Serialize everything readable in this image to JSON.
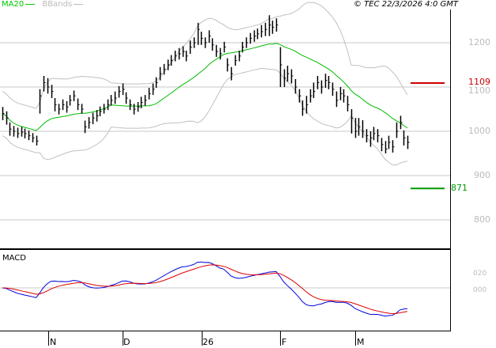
{
  "header": {
    "legend_ma": "MA20",
    "legend_bbands": "BBands",
    "copyright": "© TEC 22/3/2026 4:0 GMT"
  },
  "colors": {
    "ma": "#00bb00",
    "bands": "#c0c0c0",
    "bars": "#000000",
    "macd": "#0000dd",
    "signal": "#dd0000",
    "resistance": "#cc0000",
    "support": "#009900",
    "grid": "#c8c8c8"
  },
  "price_axis": {
    "labels": [
      "1200",
      "1100",
      "1000",
      "900",
      "800"
    ],
    "values": [
      1200,
      1100,
      1000,
      900,
      800
    ]
  },
  "levels": {
    "resistance": {
      "label": "1109",
      "value": 1109
    },
    "support": {
      "label": "871",
      "value": 871
    }
  },
  "macd_panel": {
    "title": "MACD",
    "labels": [
      "020",
      "000"
    ],
    "values": [
      20,
      0
    ]
  },
  "x_axis": {
    "labels": [
      "N",
      "D",
      "26",
      "F",
      "M"
    ]
  },
  "chart_data": {
    "type": "ohlc",
    "bars_hlc": [
      [
        1055,
        1025,
        1040
      ],
      [
        1045,
        1015,
        1030
      ],
      [
        1020,
        990,
        1005
      ],
      [
        1012,
        988,
        1000
      ],
      [
        1008,
        985,
        995
      ],
      [
        1010,
        988,
        998
      ],
      [
        1006,
        984,
        995
      ],
      [
        1002,
        980,
        990
      ],
      [
        996,
        975,
        985
      ],
      [
        990,
        968,
        978
      ],
      [
        1095,
        1040,
        1080
      ],
      [
        1125,
        1090,
        1110
      ],
      [
        1120,
        1085,
        1100
      ],
      [
        1105,
        1075,
        1090
      ],
      [
        1075,
        1045,
        1060
      ],
      [
        1062,
        1038,
        1050
      ],
      [
        1072,
        1048,
        1060
      ],
      [
        1068,
        1042,
        1055
      ],
      [
        1082,
        1058,
        1070
      ],
      [
        1092,
        1068,
        1080
      ],
      [
        1074,
        1048,
        1060
      ],
      [
        1062,
        1040,
        1050
      ],
      [
        1024,
        996,
        1010
      ],
      [
        1032,
        1006,
        1020
      ],
      [
        1042,
        1016,
        1030
      ],
      [
        1048,
        1022,
        1035
      ],
      [
        1056,
        1034,
        1045
      ],
      [
        1062,
        1040,
        1050
      ],
      [
        1072,
        1048,
        1060
      ],
      [
        1082,
        1058,
        1070
      ],
      [
        1090,
        1062,
        1075
      ],
      [
        1102,
        1076,
        1090
      ],
      [
        1108,
        1082,
        1095
      ],
      [
        1088,
        1062,
        1075
      ],
      [
        1072,
        1048,
        1060
      ],
      [
        1062,
        1038,
        1050
      ],
      [
        1066,
        1044,
        1055
      ],
      [
        1078,
        1052,
        1065
      ],
      [
        1082,
        1058,
        1070
      ],
      [
        1098,
        1072,
        1085
      ],
      [
        1108,
        1082,
        1095
      ],
      [
        1122,
        1098,
        1110
      ],
      [
        1145,
        1115,
        1130
      ],
      [
        1152,
        1128,
        1140
      ],
      [
        1162,
        1138,
        1150
      ],
      [
        1172,
        1148,
        1160
      ],
      [
        1182,
        1158,
        1170
      ],
      [
        1188,
        1162,
        1175
      ],
      [
        1192,
        1168,
        1180
      ],
      [
        1182,
        1158,
        1170
      ],
      [
        1205,
        1175,
        1190
      ],
      [
        1212,
        1188,
        1200
      ],
      [
        1245,
        1195,
        1230
      ],
      [
        1225,
        1195,
        1210
      ],
      [
        1212,
        1188,
        1200
      ],
      [
        1228,
        1200,
        1215
      ],
      [
        1210,
        1182,
        1195
      ],
      [
        1195,
        1168,
        1180
      ],
      [
        1188,
        1162,
        1175
      ],
      [
        1202,
        1178,
        1190
      ],
      [
        1165,
        1135,
        1150
      ],
      [
        1145,
        1115,
        1130
      ],
      [
        1172,
        1148,
        1160
      ],
      [
        1182,
        1158,
        1170
      ],
      [
        1202,
        1178,
        1190
      ],
      [
        1212,
        1188,
        1200
      ],
      [
        1222,
        1198,
        1210
      ],
      [
        1228,
        1202,
        1215
      ],
      [
        1232,
        1208,
        1220
      ],
      [
        1240,
        1212,
        1225
      ],
      [
        1245,
        1215,
        1230
      ],
      [
        1262,
        1215,
        1240
      ],
      [
        1250,
        1220,
        1235
      ],
      [
        1255,
        1225,
        1240
      ],
      [
        1190,
        1100,
        1150
      ],
      [
        1140,
        1100,
        1120
      ],
      [
        1148,
        1112,
        1130
      ],
      [
        1140,
        1108,
        1125
      ],
      [
        1118,
        1085,
        1100
      ],
      [
        1095,
        1065,
        1080
      ],
      [
        1070,
        1035,
        1050
      ],
      [
        1080,
        1040,
        1060
      ],
      [
        1095,
        1065,
        1080
      ],
      [
        1110,
        1075,
        1090
      ],
      [
        1125,
        1095,
        1110
      ],
      [
        1115,
        1085,
        1100
      ],
      [
        1130,
        1098,
        1115
      ],
      [
        1125,
        1095,
        1110
      ],
      [
        1110,
        1080,
        1095
      ],
      [
        1090,
        1055,
        1070
      ],
      [
        1100,
        1070,
        1085
      ],
      [
        1095,
        1065,
        1080
      ],
      [
        1080,
        1045,
        1060
      ],
      [
        1050,
        995,
        1030
      ],
      [
        1030,
        985,
        1000
      ],
      [
        1030,
        990,
        1010
      ],
      [
        1025,
        985,
        1000
      ],
      [
        1005,
        975,
        990
      ],
      [
        1000,
        965,
        985
      ],
      [
        1010,
        980,
        995
      ],
      [
        1005,
        975,
        990
      ],
      [
        985,
        955,
        970
      ],
      [
        978,
        950,
        960
      ],
      [
        990,
        960,
        975
      ],
      [
        980,
        952,
        965
      ],
      [
        1020,
        985,
        1000
      ],
      [
        1035,
        1005,
        1020
      ],
      [
        1002,
        968,
        985
      ],
      [
        990,
        960,
        975
      ]
    ]
  }
}
